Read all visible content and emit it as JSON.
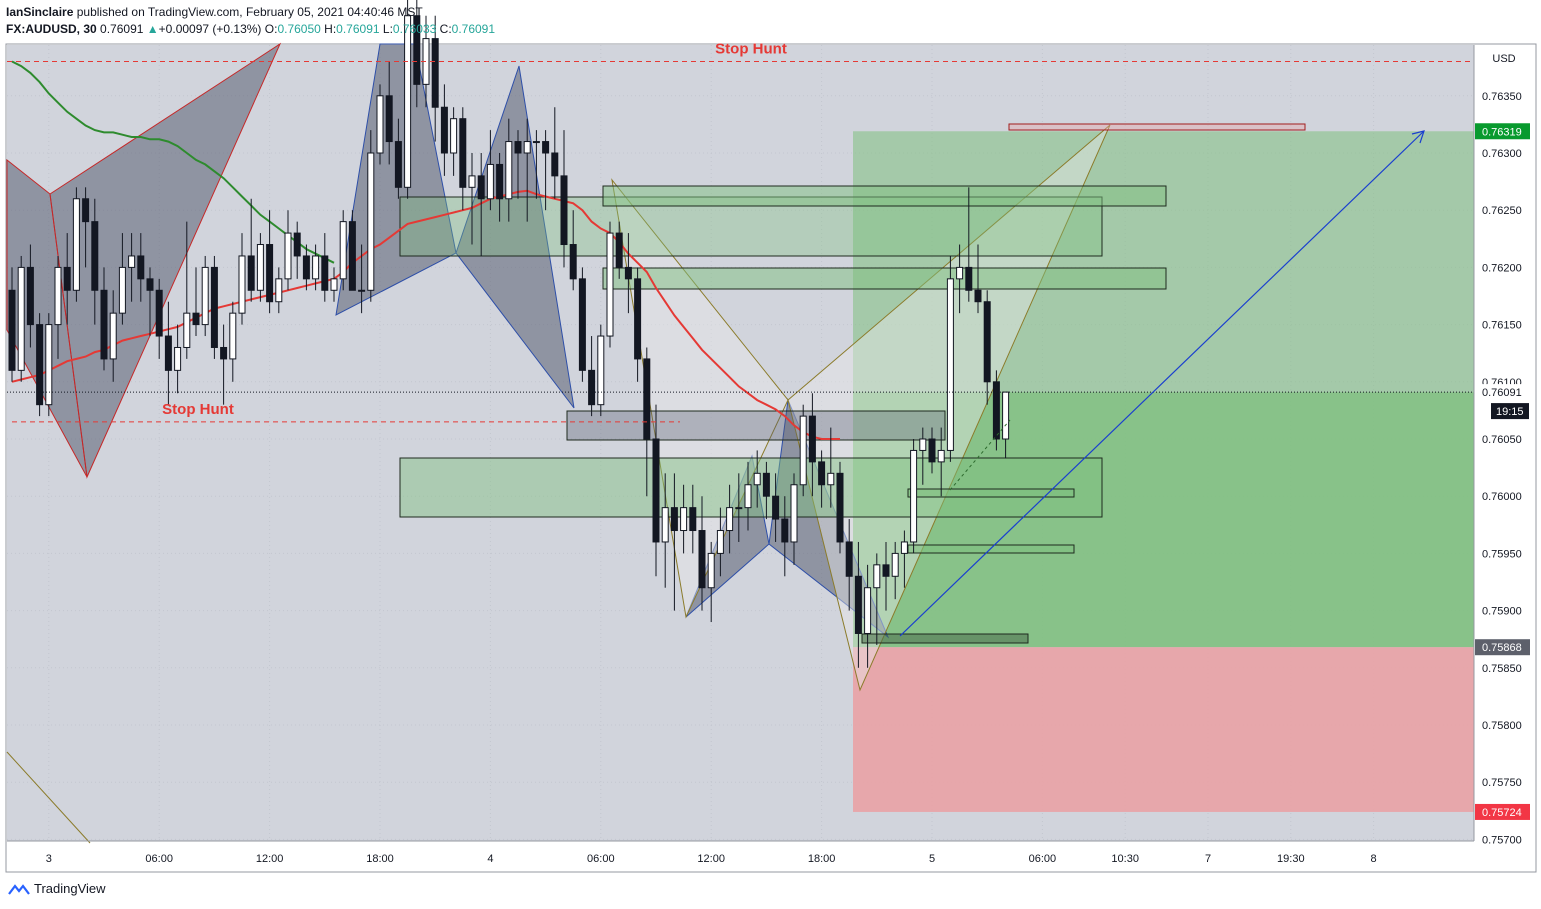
{
  "header": {
    "publisher": "IanSinclaire",
    "published_text": "published on TradingView.com, February 05, 2021 04:40:46 MST",
    "symbol": "FX:AUDUSD",
    "interval": "30",
    "last": "0.76091",
    "change": "+0.00097 (+0.13%)",
    "o_label": "O:",
    "o": "0.76050",
    "h_label": "H:",
    "h": "0.76091",
    "l_label": "L:",
    "l": "0.76033",
    "c_label": "C:",
    "c": "0.76091"
  },
  "footer": {
    "brand": "TradingView"
  },
  "colors": {
    "background": "#d1d4dc",
    "up": "#ffffff",
    "down": "#131722",
    "ma_short": "#e53935",
    "ma_long": "#2e8b2e",
    "target_zone": "#7fc07f",
    "stop_zone": "#e8a4a8",
    "arrow": "#1a3fcf",
    "stop_hunt": "#e53935",
    "pattern_fill": "#5a5e72",
    "pattern_stroke": "#2e4fa8"
  },
  "chart_data": {
    "type": "candlestick",
    "symbol": "FX:AUDUSD",
    "timeframe": "30",
    "currency": "USD",
    "ylim": [
      0.7569,
      0.76445
    ],
    "y_ticks": [
      "0.76350",
      "0.76300",
      "0.76250",
      "0.76200",
      "0.76150",
      "0.76100",
      "0.76050",
      "0.76000",
      "0.75950",
      "0.75900",
      "0.75850",
      "0.75800",
      "0.75750",
      "0.75700"
    ],
    "x_tick_labels": [
      {
        "i": 4,
        "label": "3"
      },
      {
        "i": 16,
        "label": "06:00"
      },
      {
        "i": 28,
        "label": "12:00"
      },
      {
        "i": 40,
        "label": "18:00"
      },
      {
        "i": 52,
        "label": "4"
      },
      {
        "i": 64,
        "label": "06:00"
      },
      {
        "i": 76,
        "label": "12:00"
      },
      {
        "i": 88,
        "label": "18:00"
      },
      {
        "i": 100,
        "label": "5"
      },
      {
        "i": 112,
        "label": "06:00"
      },
      {
        "i": 121,
        "label": "10:30"
      },
      {
        "i": 130,
        "label": "7"
      },
      {
        "i": 139,
        "label": "19:30"
      },
      {
        "i": 148,
        "label": "8"
      }
    ],
    "candles": [
      [
        0.7618,
        0.762,
        0.761,
        0.7611
      ],
      [
        0.7611,
        0.7621,
        0.761,
        0.762
      ],
      [
        0.762,
        0.7622,
        0.7613,
        0.7615
      ],
      [
        0.7615,
        0.7616,
        0.7607,
        0.7608
      ],
      [
        0.7608,
        0.7616,
        0.7607,
        0.7615
      ],
      [
        0.7615,
        0.7621,
        0.7612,
        0.762
      ],
      [
        0.762,
        0.7623,
        0.7615,
        0.7618
      ],
      [
        0.7618,
        0.7627,
        0.7617,
        0.7626
      ],
      [
        0.7626,
        0.7627,
        0.762,
        0.7624
      ],
      [
        0.7624,
        0.7626,
        0.7615,
        0.7618
      ],
      [
        0.7618,
        0.762,
        0.7611,
        0.7612
      ],
      [
        0.7612,
        0.7618,
        0.761,
        0.7616
      ],
      [
        0.7616,
        0.7623,
        0.7615,
        0.762
      ],
      [
        0.762,
        0.7623,
        0.7617,
        0.7621
      ],
      [
        0.7621,
        0.7623,
        0.7617,
        0.7619
      ],
      [
        0.7619,
        0.762,
        0.7614,
        0.7618
      ],
      [
        0.7618,
        0.7619,
        0.7612,
        0.7614
      ],
      [
        0.7614,
        0.7617,
        0.7608,
        0.7611
      ],
      [
        0.7611,
        0.7615,
        0.7609,
        0.7613
      ],
      [
        0.7613,
        0.7624,
        0.7612,
        0.7616
      ],
      [
        0.7616,
        0.762,
        0.7614,
        0.7615
      ],
      [
        0.7615,
        0.7621,
        0.7614,
        0.762
      ],
      [
        0.762,
        0.7621,
        0.7612,
        0.7613
      ],
      [
        0.7613,
        0.7615,
        0.7608,
        0.7612
      ],
      [
        0.7612,
        0.7617,
        0.761,
        0.7616
      ],
      [
        0.7616,
        0.7623,
        0.7615,
        0.7621
      ],
      [
        0.7621,
        0.7626,
        0.7617,
        0.7618
      ],
      [
        0.7618,
        0.7623,
        0.7617,
        0.7622
      ],
      [
        0.7622,
        0.7625,
        0.7616,
        0.7617
      ],
      [
        0.7617,
        0.762,
        0.7616,
        0.7619
      ],
      [
        0.7619,
        0.7625,
        0.7618,
        0.7623
      ],
      [
        0.7623,
        0.7624,
        0.7619,
        0.7621
      ],
      [
        0.7621,
        0.7622,
        0.7618,
        0.7619
      ],
      [
        0.7619,
        0.7622,
        0.7618,
        0.7621
      ],
      [
        0.7621,
        0.7623,
        0.7617,
        0.7618
      ],
      [
        0.7618,
        0.762,
        0.7617,
        0.7619
      ],
      [
        0.7619,
        0.7625,
        0.7618,
        0.7624
      ],
      [
        0.7624,
        0.7625,
        0.7618,
        0.7618
      ],
      [
        0.7618,
        0.7622,
        0.7616,
        0.7618
      ],
      [
        0.7618,
        0.7632,
        0.7617,
        0.763
      ],
      [
        0.763,
        0.7636,
        0.7629,
        0.7635
      ],
      [
        0.7635,
        0.7638,
        0.7629,
        0.7631
      ],
      [
        0.7631,
        0.7633,
        0.7626,
        0.7627
      ],
      [
        0.7627,
        0.7644,
        0.7626,
        0.7642
      ],
      [
        0.7642,
        0.7644,
        0.7634,
        0.7636
      ],
      [
        0.7636,
        0.7642,
        0.7634,
        0.764
      ],
      [
        0.764,
        0.7642,
        0.7631,
        0.7634
      ],
      [
        0.7634,
        0.7636,
        0.7628,
        0.763
      ],
      [
        0.763,
        0.7634,
        0.7628,
        0.7633
      ],
      [
        0.7633,
        0.7634,
        0.7625,
        0.7627
      ],
      [
        0.7627,
        0.763,
        0.7622,
        0.7628
      ],
      [
        0.7628,
        0.763,
        0.7621,
        0.7626
      ],
      [
        0.7626,
        0.7632,
        0.7625,
        0.7629
      ],
      [
        0.7629,
        0.763,
        0.7624,
        0.7626
      ],
      [
        0.7626,
        0.7633,
        0.7624,
        0.7631
      ],
      [
        0.7631,
        0.7632,
        0.7626,
        0.763
      ],
      [
        0.763,
        0.7633,
        0.7624,
        0.7631
      ],
      [
        0.7631,
        0.7632,
        0.7626,
        0.7631
      ],
      [
        0.7631,
        0.7632,
        0.7625,
        0.763
      ],
      [
        0.763,
        0.7634,
        0.7626,
        0.7628
      ],
      [
        0.7628,
        0.7632,
        0.762,
        0.7622
      ],
      [
        0.7622,
        0.7625,
        0.7618,
        0.7619
      ],
      [
        0.7619,
        0.762,
        0.761,
        0.7611
      ],
      [
        0.7611,
        0.7614,
        0.7607,
        0.7608
      ],
      [
        0.7608,
        0.7615,
        0.7607,
        0.7614
      ],
      [
        0.7614,
        0.7624,
        0.7613,
        0.7623
      ],
      [
        0.7623,
        0.7624,
        0.7619,
        0.762
      ],
      [
        0.762,
        0.7623,
        0.7616,
        0.7619
      ],
      [
        0.7619,
        0.762,
        0.761,
        0.7612
      ],
      [
        0.7612,
        0.7613,
        0.76,
        0.7605
      ],
      [
        0.7605,
        0.7608,
        0.7593,
        0.7596
      ],
      [
        0.7596,
        0.7602,
        0.7592,
        0.7599
      ],
      [
        0.7599,
        0.7602,
        0.759,
        0.7597
      ],
      [
        0.7597,
        0.7601,
        0.7595,
        0.7599
      ],
      [
        0.7599,
        0.7601,
        0.7595,
        0.7597
      ],
      [
        0.7597,
        0.76,
        0.759,
        0.7592
      ],
      [
        0.7592,
        0.7596,
        0.7589,
        0.7595
      ],
      [
        0.7595,
        0.7599,
        0.7593,
        0.7597
      ],
      [
        0.7597,
        0.7601,
        0.7595,
        0.7599
      ],
      [
        0.7599,
        0.7602,
        0.7596,
        0.7599
      ],
      [
        0.7599,
        0.7603,
        0.7597,
        0.7601
      ],
      [
        0.7601,
        0.7604,
        0.7599,
        0.7602
      ],
      [
        0.7602,
        0.7603,
        0.7598,
        0.76
      ],
      [
        0.76,
        0.7602,
        0.7596,
        0.7598
      ],
      [
        0.7598,
        0.76,
        0.7593,
        0.7596
      ],
      [
        0.7596,
        0.7602,
        0.7594,
        0.7601
      ],
      [
        0.7601,
        0.7608,
        0.76,
        0.7607
      ],
      [
        0.7607,
        0.7609,
        0.76,
        0.7603
      ],
      [
        0.7603,
        0.7604,
        0.7599,
        0.7601
      ],
      [
        0.7601,
        0.7606,
        0.7599,
        0.7602
      ],
      [
        0.7602,
        0.7603,
        0.7595,
        0.7596
      ],
      [
        0.7596,
        0.7598,
        0.759,
        0.7593
      ],
      [
        0.7593,
        0.7596,
        0.7585,
        0.7588
      ],
      [
        0.7588,
        0.7594,
        0.7585,
        0.7592
      ],
      [
        0.7592,
        0.7595,
        0.7587,
        0.7594
      ],
      [
        0.7594,
        0.7596,
        0.759,
        0.7593
      ],
      [
        0.7593,
        0.7596,
        0.7591,
        0.7595
      ],
      [
        0.7595,
        0.7597,
        0.7592,
        0.7596
      ],
      [
        0.7596,
        0.7605,
        0.7595,
        0.7604
      ],
      [
        0.7604,
        0.7606,
        0.7601,
        0.7605
      ],
      [
        0.7605,
        0.7606,
        0.7602,
        0.7603
      ],
      [
        0.7603,
        0.7606,
        0.76,
        0.7604
      ],
      [
        0.7604,
        0.7621,
        0.7603,
        0.7619
      ],
      [
        0.7619,
        0.7622,
        0.7616,
        0.762
      ],
      [
        0.762,
        0.7627,
        0.7617,
        0.7618
      ],
      [
        0.7618,
        0.7622,
        0.7616,
        0.7617
      ],
      [
        0.7617,
        0.7618,
        0.7608,
        0.761
      ],
      [
        0.761,
        0.7611,
        0.7604,
        0.7605
      ],
      [
        0.7605,
        0.76091,
        0.76033,
        0.76091
      ]
    ],
    "ma_short_values": [
      0.761,
      0.76102,
      0.76104,
      0.76106,
      0.7611,
      0.76114,
      0.76118,
      0.7612,
      0.76122,
      0.76126,
      0.76128,
      0.76132,
      0.76136,
      0.76138,
      0.7614,
      0.76142,
      0.76144,
      0.76146,
      0.76148,
      0.76152,
      0.76156,
      0.7616,
      0.76164,
      0.76166,
      0.76168,
      0.7617,
      0.76172,
      0.76174,
      0.76176,
      0.76178,
      0.7618,
      0.76182,
      0.76184,
      0.76186,
      0.76188,
      0.7619,
      0.76196,
      0.76204,
      0.7621,
      0.76216,
      0.7622,
      0.76226,
      0.76232,
      0.76238,
      0.7624,
      0.76242,
      0.76244,
      0.76246,
      0.76248,
      0.7625,
      0.76252,
      0.76256,
      0.7626,
      0.76262,
      0.76264,
      0.76266,
      0.76267,
      0.76264,
      0.76262,
      0.7626,
      0.76258,
      0.76256,
      0.7625,
      0.7624,
      0.76234,
      0.7623,
      0.76222,
      0.76212,
      0.76204,
      0.76196,
      0.76182,
      0.7617,
      0.76158,
      0.76148,
      0.76138,
      0.76128,
      0.7612,
      0.76112,
      0.76104,
      0.76096,
      0.7609,
      0.76084,
      0.7608,
      0.76076,
      0.7607,
      0.76062,
      0.76056,
      0.76052,
      0.7605,
      0.7605,
      0.7605
    ],
    "ma_long_values": [
      0.7638,
      0.76376,
      0.7637,
      0.76362,
      0.76352,
      0.76344,
      0.76336,
      0.7633,
      0.76324,
      0.7632,
      0.76318,
      0.76318,
      0.76316,
      0.76314,
      0.76314,
      0.76312,
      0.76312,
      0.7631,
      0.76306,
      0.763,
      0.76294,
      0.7629,
      0.76284,
      0.76278,
      0.7627,
      0.76262,
      0.76254,
      0.76246,
      0.7624,
      0.76234,
      0.76228,
      0.76222,
      0.76216,
      0.76212,
      0.76208,
      0.76204
    ],
    "annotations": {
      "stop_hunt_upper": {
        "label": "Stop Hunt",
        "price": 0.7638
      },
      "stop_hunt_lower": {
        "label": "Stop Hunt",
        "price": 0.76065
      },
      "target_price": "0.76319",
      "entry_price": "0.75868",
      "stop_price": "0.75724",
      "last_price": "0.76091",
      "countdown": "19:15",
      "axis_currency": "USD"
    }
  }
}
